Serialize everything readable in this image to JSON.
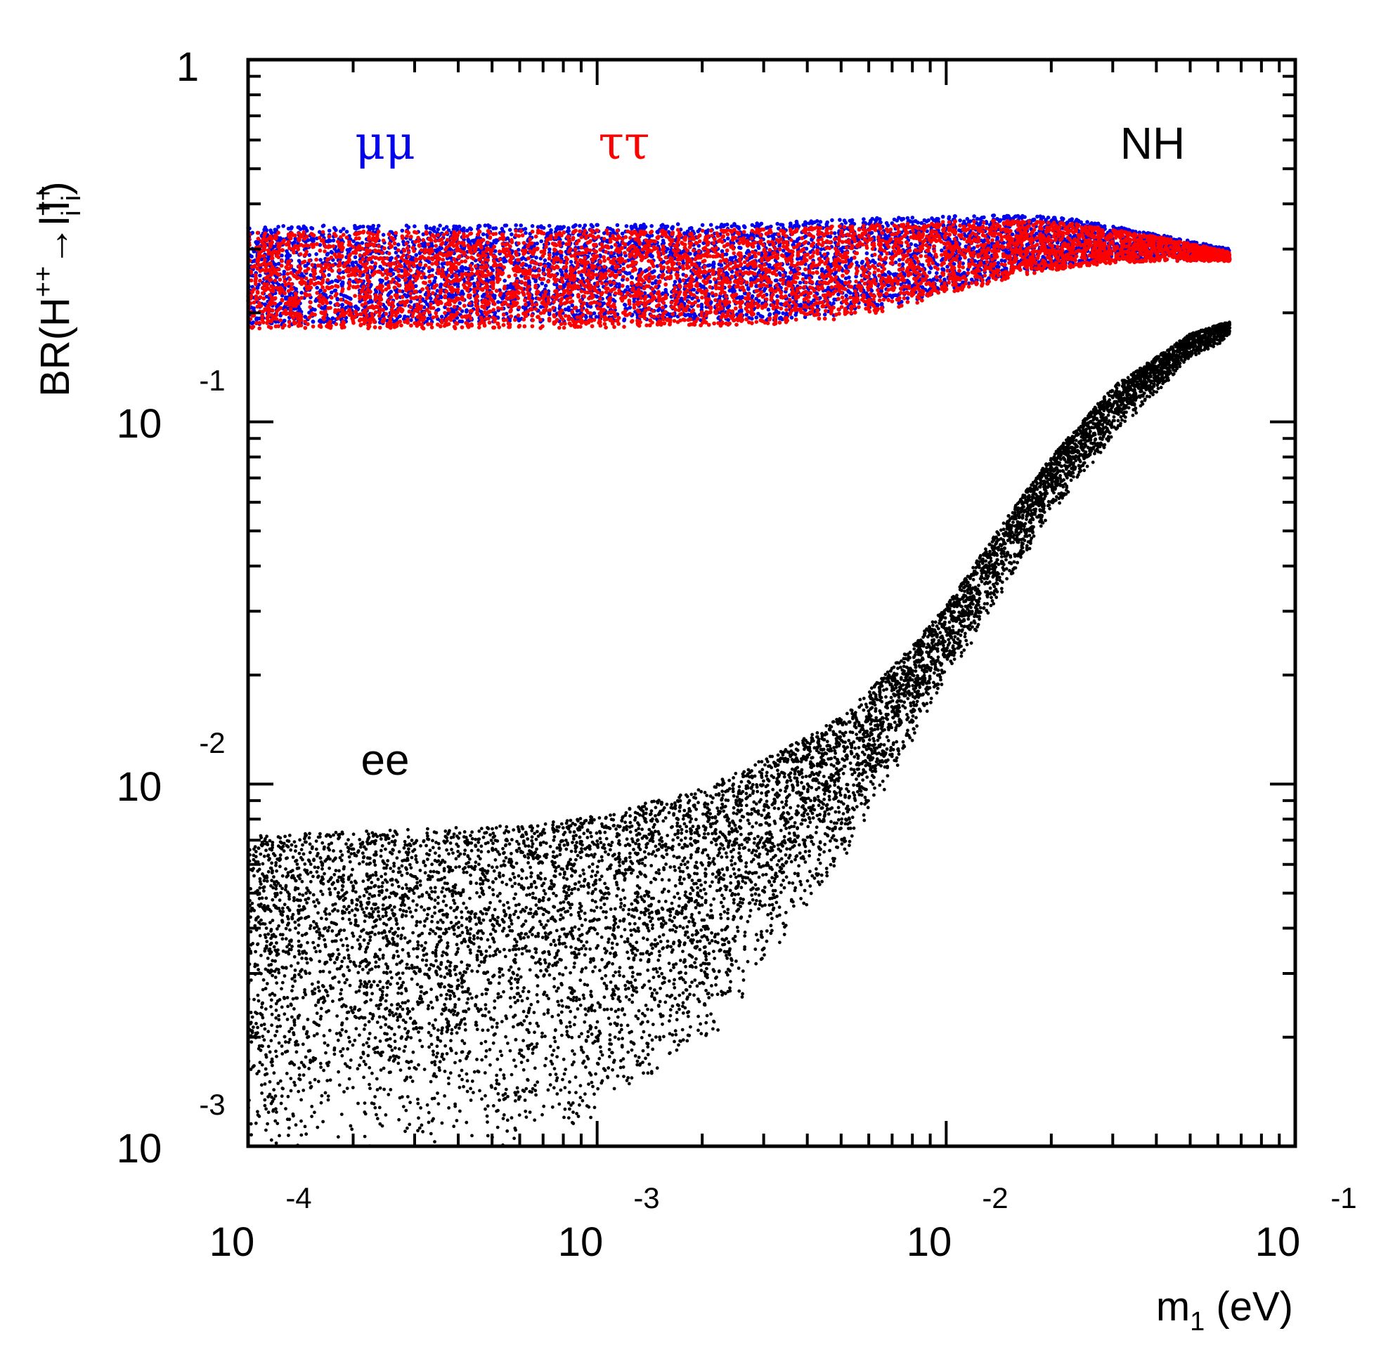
{
  "chart_data": {
    "type": "scatter",
    "title": "",
    "xlabel": {
      "main": "m",
      "sub": "1",
      "unit": " (eV)"
    },
    "ylabel": {
      "prefix": "BR(H",
      "sup1": "++",
      "arrow": "→",
      "l1": "l",
      "l1_sup": "+",
      "l1_sub": "i",
      "l2": "l",
      "l2_sup": "+",
      "l2_sub": "i",
      "suffix": ")"
    },
    "xscale": "log",
    "yscale": "log",
    "xlim": [
      0.0001,
      0.1
    ],
    "ylim": [
      0.001,
      1
    ],
    "x_ticks": [
      {
        "value": 0.0001,
        "base": "10",
        "exp": "-4"
      },
      {
        "value": 0.001,
        "base": "10",
        "exp": "-3"
      },
      {
        "value": 0.01,
        "base": "10",
        "exp": "-2"
      },
      {
        "value": 0.1,
        "base": "10",
        "exp": "-1"
      }
    ],
    "y_ticks": [
      {
        "value": 0.001,
        "base": "10",
        "exp": "-3"
      },
      {
        "value": 0.01,
        "base": "10",
        "exp": "-2"
      },
      {
        "value": 0.1,
        "base": "10",
        "exp": "-1"
      },
      {
        "value": 1,
        "base": "1",
        "exp": ""
      }
    ],
    "annotations": [
      {
        "text": "NH",
        "color": "#000000",
        "x": 0.055,
        "y": 0.6
      },
      {
        "text": "μμ",
        "color": "#0000ee",
        "x": 0.00022,
        "y": 0.6,
        "font": "serif"
      },
      {
        "text": "ττ",
        "color": "#ff0000",
        "x": 0.00108,
        "y": 0.6,
        "font": "serif"
      },
      {
        "text": "ee",
        "color": "#000000",
        "x": 0.00022,
        "y": 0.0107
      }
    ],
    "series": [
      {
        "name": "μμ",
        "color": "#0000ee",
        "band": {
          "x": [
            0.0001,
            0.001,
            0.003,
            0.006,
            0.01,
            0.017,
            0.025,
            0.04,
            0.065
          ],
          "y_low": [
            0.185,
            0.19,
            0.19,
            0.2,
            0.23,
            0.26,
            0.275,
            0.28,
            0.28
          ],
          "y_high": [
            0.348,
            0.35,
            0.355,
            0.365,
            0.37,
            0.373,
            0.36,
            0.33,
            0.3
          ]
        }
      },
      {
        "name": "ττ",
        "color": "#ff0000",
        "band": {
          "x": [
            0.0001,
            0.001,
            0.003,
            0.006,
            0.01,
            0.017,
            0.025,
            0.04,
            0.065
          ],
          "y_low": [
            0.18,
            0.182,
            0.185,
            0.195,
            0.225,
            0.255,
            0.27,
            0.278,
            0.278
          ],
          "y_high": [
            0.335,
            0.338,
            0.342,
            0.35,
            0.358,
            0.36,
            0.35,
            0.325,
            0.295
          ]
        }
      },
      {
        "name": "ee",
        "color": "#000000",
        "band": {
          "x": [
            0.0001,
            0.0003,
            0.0006,
            0.001,
            0.002,
            0.003,
            0.005,
            0.007,
            0.01,
            0.015,
            0.02,
            0.03,
            0.05,
            0.065
          ],
          "y_low": [
            0.001,
            0.001,
            0.001,
            0.00115,
            0.0018,
            0.0031,
            0.0059,
            0.0105,
            0.019,
            0.035,
            0.055,
            0.09,
            0.15,
            0.17
          ],
          "y_high": [
            0.0072,
            0.0075,
            0.0077,
            0.0082,
            0.0097,
            0.0117,
            0.0153,
            0.021,
            0.031,
            0.055,
            0.08,
            0.125,
            0.175,
            0.19
          ]
        }
      }
    ]
  }
}
